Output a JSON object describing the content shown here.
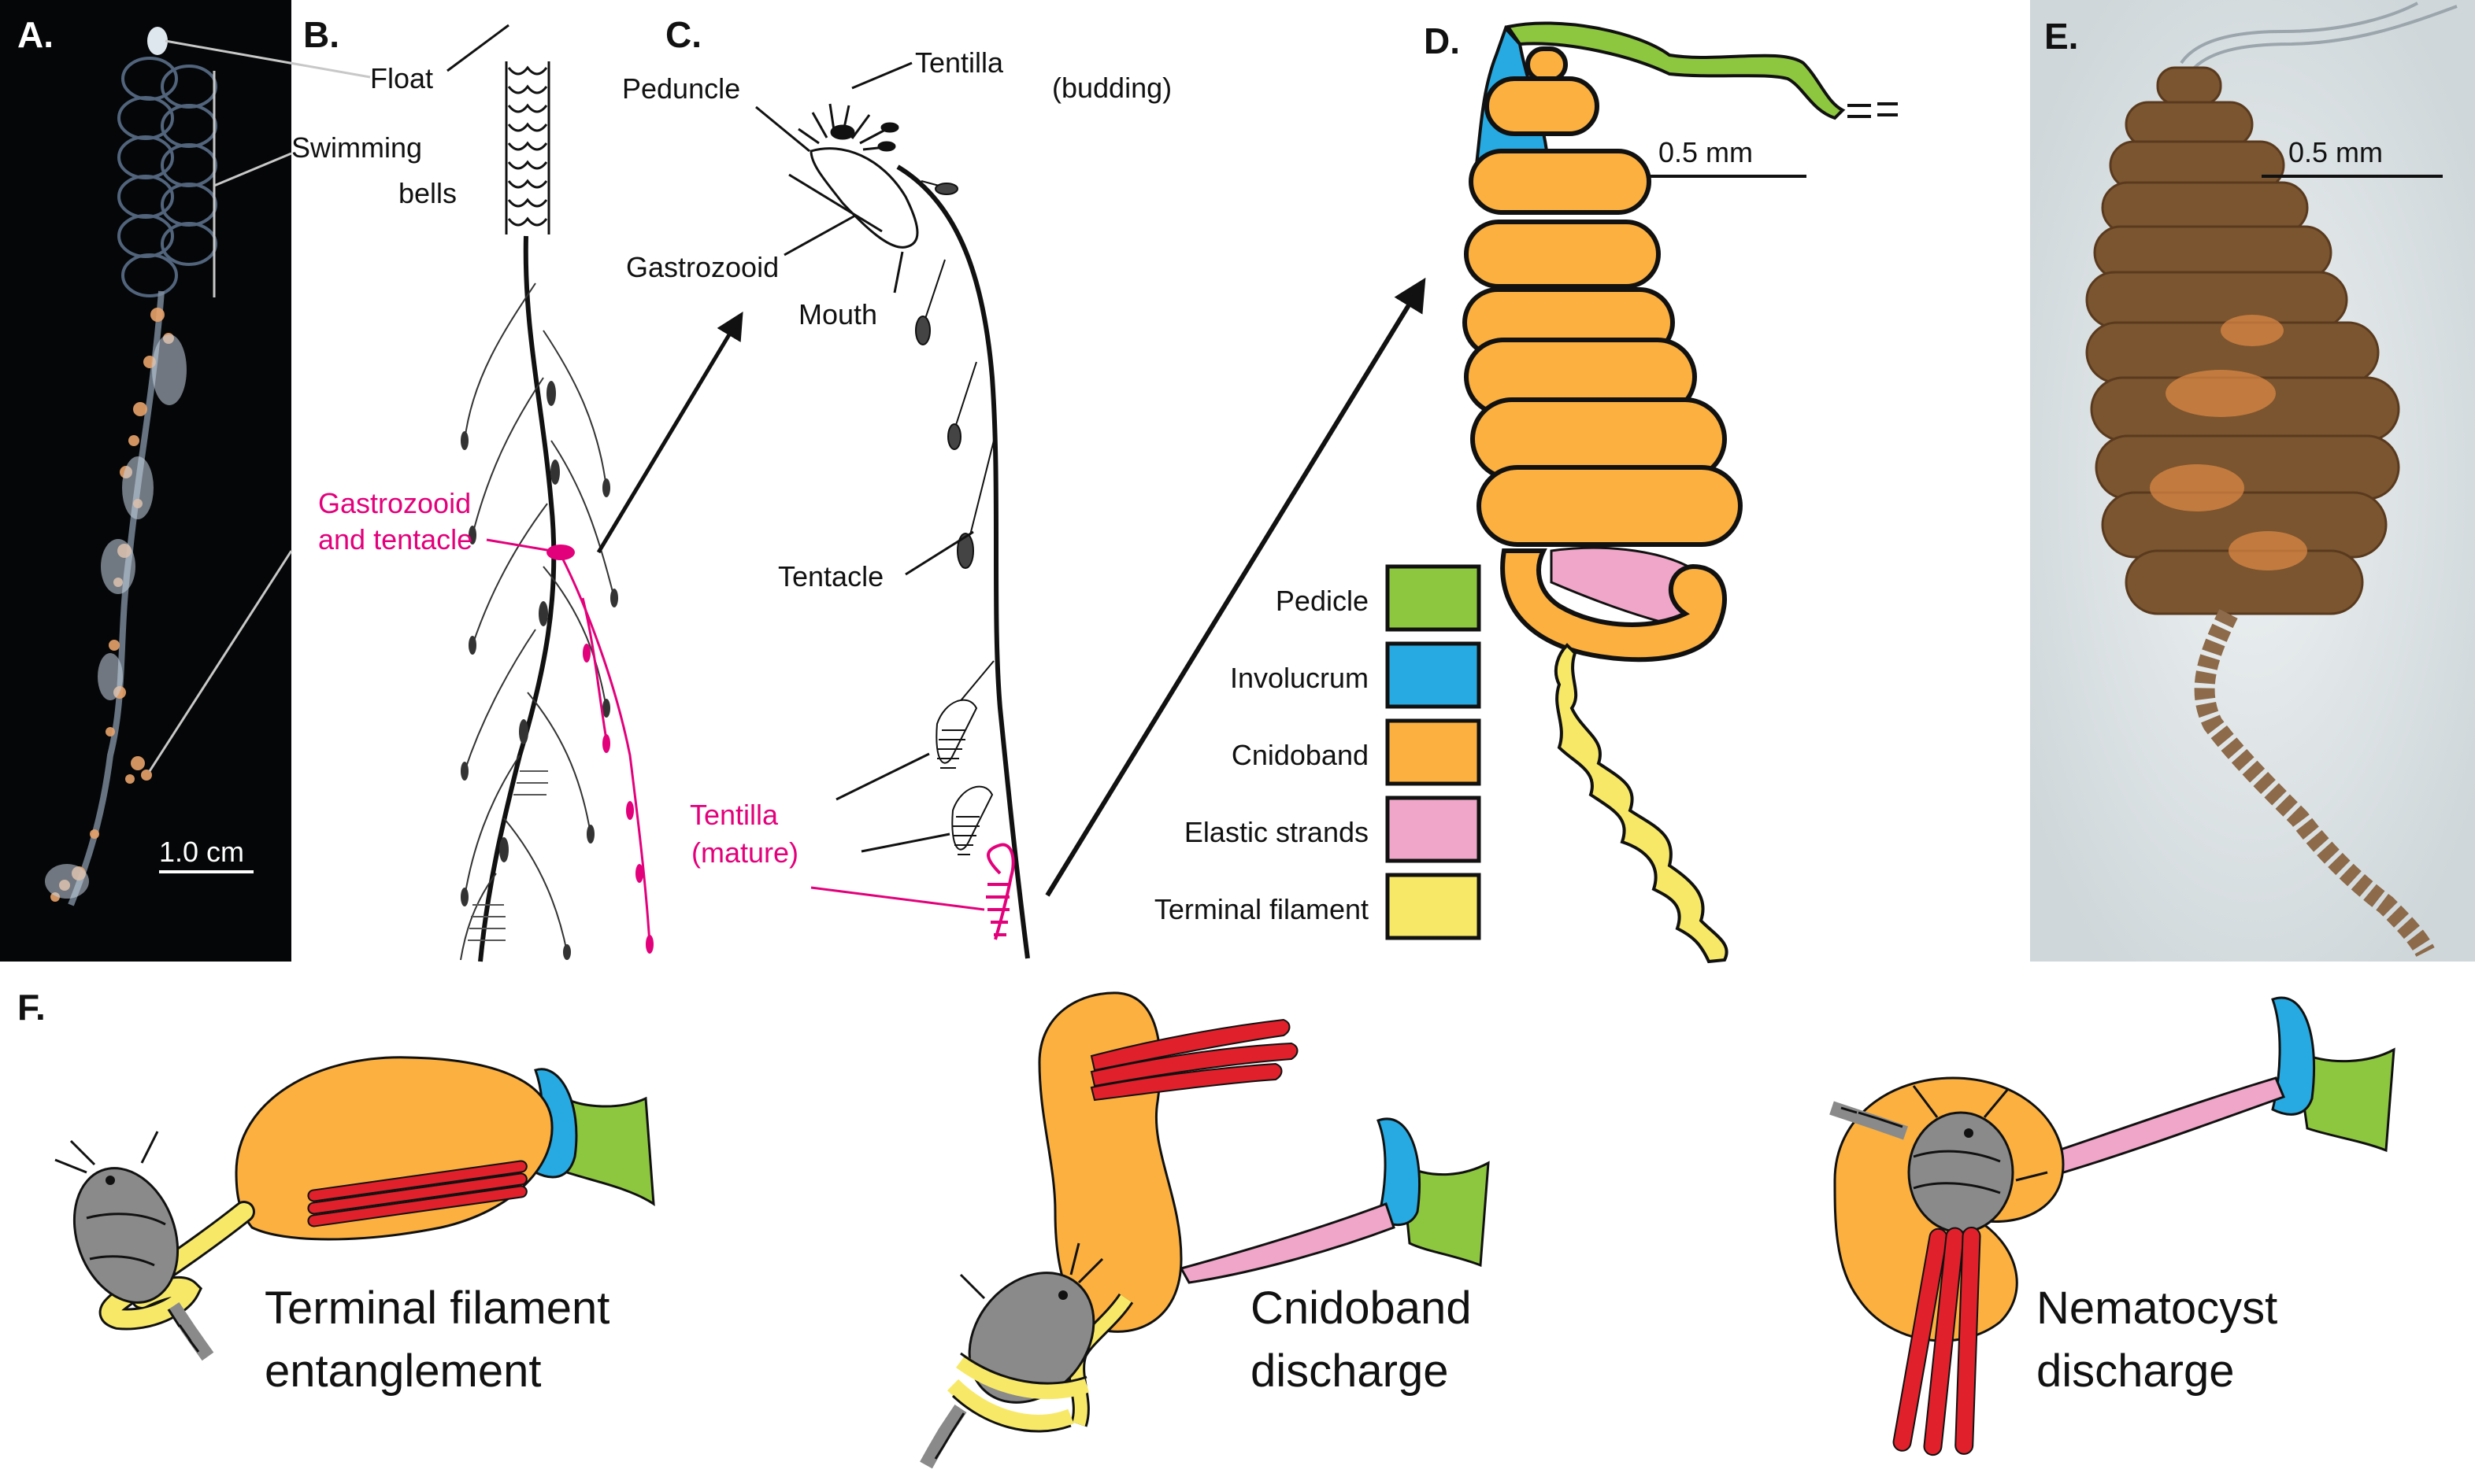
{
  "panels": {
    "A": {
      "letter": "A.",
      "scale": "1.0 cm"
    },
    "B": {
      "letter": "B.",
      "labels": {
        "float": "Float",
        "swimming_bells_1": "Swimming",
        "swimming_bells_2": "bells",
        "gastro_1": "Gastrozooid",
        "gastro_2": "and tentacle"
      }
    },
    "C": {
      "letter": "C.",
      "labels": {
        "peduncle": "Peduncle",
        "tentilla_budding_1": "Tentilla",
        "tentilla_budding_2": "(budding)",
        "gastrozooid": "Gastrozooid",
        "mouth": "Mouth",
        "tentacle": "Tentacle",
        "tentilla_mature_1": "Tentilla",
        "tentilla_mature_2": "(mature)"
      }
    },
    "D": {
      "letter": "D.",
      "scale": "0.5 mm",
      "legend": [
        {
          "label": "Pedicle",
          "color": "#8dc63f"
        },
        {
          "label": "Involucrum",
          "color": "#27aae1"
        },
        {
          "label": "Cnidoband",
          "color": "#fbb040"
        },
        {
          "label": "Elastic strands",
          "color": "#f0a6c8"
        },
        {
          "label": "Terminal filament",
          "color": "#f7e967"
        }
      ]
    },
    "E": {
      "letter": "E.",
      "scale": "0.5 mm"
    },
    "F": {
      "letter": "F.",
      "stages": [
        {
          "line1": "Terminal filament",
          "line2": "entanglement"
        },
        {
          "line1": "Cnidoband",
          "line2": "discharge"
        },
        {
          "line1": "Nematocyst",
          "line2": "discharge"
        }
      ]
    }
  },
  "colors": {
    "pedicle": "#8dc63f",
    "involucrum": "#27aae1",
    "cnidoband": "#fbb040",
    "elastic": "#f0a6c8",
    "terminal": "#f7e967",
    "nematocyst": "#e0202a",
    "prey": "#8a8a8a",
    "highlight": "#e3007b"
  }
}
